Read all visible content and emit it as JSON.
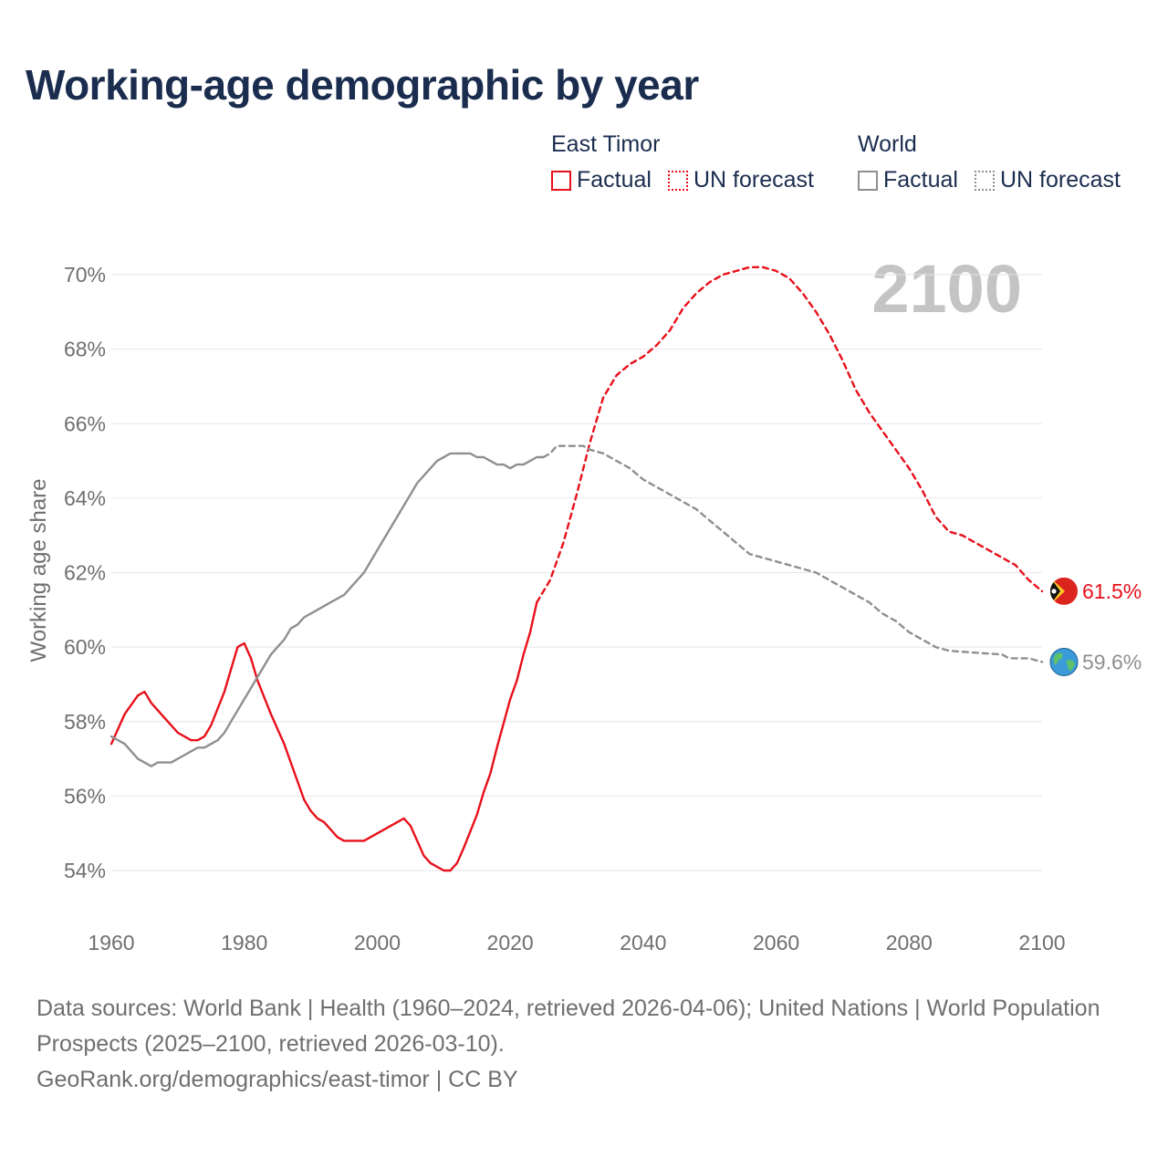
{
  "title": "Working-age demographic by year",
  "footer": {
    "sources": "Data sources: World Bank | Health (1960–2024, retrieved 2026-04-06); United Nations | World Population Prospects (2025–2100, retrieved 2026-03-10).",
    "attribution": "GeoRank.org/demographics/east-timor | CC BY"
  },
  "legend": {
    "east_timor": {
      "name": "East Timor",
      "factual": "Factual",
      "forecast": "UN forecast"
    },
    "world": {
      "name": "World",
      "factual": "Factual",
      "forecast": "UN forecast"
    }
  },
  "colors": {
    "east_timor": "#e8101a",
    "world": "#8f8f8f",
    "title": "#1b2d4f",
    "year_watermark": "#c4c4c4"
  },
  "chart_data": {
    "type": "line",
    "title": "Working-age demographic by year",
    "ylabel": "Working age share",
    "xlabel": "",
    "xlim": [
      1960,
      2100
    ],
    "ylim": [
      53,
      71
    ],
    "x_ticks": [
      1960,
      1980,
      2000,
      2020,
      2040,
      2060,
      2080,
      2100
    ],
    "x_tick_labels": [
      "1960",
      "1980",
      "2000",
      "2020",
      "2040",
      "2060",
      "2080",
      "2100"
    ],
    "y_ticks": [
      54,
      56,
      58,
      60,
      62,
      64,
      66,
      68,
      70
    ],
    "y_tick_labels": [
      "54%",
      "56%",
      "58%",
      "60%",
      "62%",
      "64%",
      "66%",
      "68%",
      "70%"
    ],
    "grid": true,
    "current_year_label": "2100",
    "series": [
      {
        "name": "East Timor",
        "kind": "factual",
        "icon": "east-timor-flag-icon",
        "points": [
          [
            1960,
            57.4
          ],
          [
            1962,
            58.2
          ],
          [
            1964,
            58.7
          ],
          [
            1965,
            58.8
          ],
          [
            1966,
            58.5
          ],
          [
            1968,
            58.1
          ],
          [
            1970,
            57.7
          ],
          [
            1972,
            57.5
          ],
          [
            1973,
            57.5
          ],
          [
            1974,
            57.6
          ],
          [
            1975,
            57.9
          ],
          [
            1977,
            58.8
          ],
          [
            1978,
            59.4
          ],
          [
            1979,
            60.0
          ],
          [
            1980,
            60.1
          ],
          [
            1981,
            59.7
          ],
          [
            1982,
            59.1
          ],
          [
            1984,
            58.2
          ],
          [
            1986,
            57.4
          ],
          [
            1988,
            56.4
          ],
          [
            1989,
            55.9
          ],
          [
            1990,
            55.6
          ],
          [
            1991,
            55.4
          ],
          [
            1992,
            55.3
          ],
          [
            1994,
            54.9
          ],
          [
            1995,
            54.8
          ],
          [
            1998,
            54.8
          ],
          [
            2004,
            55.4
          ],
          [
            2005,
            55.2
          ],
          [
            2007,
            54.4
          ],
          [
            2008,
            54.2
          ],
          [
            2010,
            54.0
          ],
          [
            2011,
            54.0
          ],
          [
            2012,
            54.2
          ],
          [
            2013,
            54.6
          ],
          [
            2015,
            55.5
          ],
          [
            2016,
            56.1
          ],
          [
            2017,
            56.6
          ],
          [
            2018,
            57.3
          ],
          [
            2020,
            58.6
          ],
          [
            2021,
            59.1
          ],
          [
            2022,
            59.8
          ],
          [
            2023,
            60.4
          ],
          [
            2024,
            61.2
          ]
        ]
      },
      {
        "name": "East Timor",
        "kind": "forecast",
        "points": [
          [
            2024,
            61.2
          ],
          [
            2026,
            61.8
          ],
          [
            2028,
            62.8
          ],
          [
            2030,
            64.1
          ],
          [
            2032,
            65.5
          ],
          [
            2034,
            66.7
          ],
          [
            2036,
            67.3
          ],
          [
            2038,
            67.6
          ],
          [
            2040,
            67.8
          ],
          [
            2042,
            68.1
          ],
          [
            2044,
            68.5
          ],
          [
            2046,
            69.1
          ],
          [
            2048,
            69.5
          ],
          [
            2050,
            69.8
          ],
          [
            2052,
            70.0
          ],
          [
            2054,
            70.1
          ],
          [
            2056,
            70.2
          ],
          [
            2058,
            70.2
          ],
          [
            2060,
            70.1
          ],
          [
            2062,
            69.9
          ],
          [
            2064,
            69.5
          ],
          [
            2066,
            69.0
          ],
          [
            2068,
            68.4
          ],
          [
            2070,
            67.7
          ],
          [
            2072,
            66.9
          ],
          [
            2074,
            66.3
          ],
          [
            2076,
            65.8
          ],
          [
            2078,
            65.3
          ],
          [
            2080,
            64.8
          ],
          [
            2082,
            64.2
          ],
          [
            2084,
            63.5
          ],
          [
            2086,
            63.1
          ],
          [
            2088,
            63.0
          ],
          [
            2090,
            62.8
          ],
          [
            2092,
            62.6
          ],
          [
            2094,
            62.4
          ],
          [
            2096,
            62.2
          ],
          [
            2098,
            61.8
          ],
          [
            2100,
            61.5
          ]
        ]
      },
      {
        "name": "World",
        "kind": "factual",
        "icon": "globe-icon",
        "points": [
          [
            1960,
            57.6
          ],
          [
            1962,
            57.4
          ],
          [
            1964,
            57.0
          ],
          [
            1966,
            56.8
          ],
          [
            1967,
            56.9
          ],
          [
            1969,
            56.9
          ],
          [
            1971,
            57.1
          ],
          [
            1973,
            57.3
          ],
          [
            1974,
            57.3
          ],
          [
            1976,
            57.5
          ],
          [
            1977,
            57.7
          ],
          [
            1978,
            58.0
          ],
          [
            1980,
            58.6
          ],
          [
            1982,
            59.2
          ],
          [
            1984,
            59.8
          ],
          [
            1985,
            60.0
          ],
          [
            1986,
            60.2
          ],
          [
            1987,
            60.5
          ],
          [
            1988,
            60.6
          ],
          [
            1989,
            60.8
          ],
          [
            1991,
            61.0
          ],
          [
            1993,
            61.2
          ],
          [
            1995,
            61.4
          ],
          [
            1996,
            61.6
          ],
          [
            1998,
            62.0
          ],
          [
            2000,
            62.6
          ],
          [
            2002,
            63.2
          ],
          [
            2004,
            63.8
          ],
          [
            2005,
            64.1
          ],
          [
            2006,
            64.4
          ],
          [
            2008,
            64.8
          ],
          [
            2009,
            65.0
          ],
          [
            2011,
            65.2
          ],
          [
            2014,
            65.2
          ],
          [
            2015,
            65.1
          ],
          [
            2016,
            65.1
          ],
          [
            2018,
            64.9
          ],
          [
            2019,
            64.9
          ],
          [
            2020,
            64.8
          ],
          [
            2021,
            64.9
          ],
          [
            2022,
            64.9
          ],
          [
            2024,
            65.1
          ],
          [
            2025,
            65.1
          ]
        ]
      },
      {
        "name": "World",
        "kind": "forecast",
        "points": [
          [
            2025,
            65.1
          ],
          [
            2026,
            65.2
          ],
          [
            2027,
            65.4
          ],
          [
            2031,
            65.4
          ],
          [
            2032,
            65.3
          ],
          [
            2034,
            65.2
          ],
          [
            2036,
            65.0
          ],
          [
            2038,
            64.8
          ],
          [
            2040,
            64.5
          ],
          [
            2042,
            64.3
          ],
          [
            2044,
            64.1
          ],
          [
            2046,
            63.9
          ],
          [
            2048,
            63.7
          ],
          [
            2050,
            63.4
          ],
          [
            2052,
            63.1
          ],
          [
            2054,
            62.8
          ],
          [
            2056,
            62.5
          ],
          [
            2058,
            62.4
          ],
          [
            2060,
            62.3
          ],
          [
            2062,
            62.2
          ],
          [
            2064,
            62.1
          ],
          [
            2066,
            62.0
          ],
          [
            2068,
            61.8
          ],
          [
            2070,
            61.6
          ],
          [
            2072,
            61.4
          ],
          [
            2074,
            61.2
          ],
          [
            2076,
            60.9
          ],
          [
            2078,
            60.7
          ],
          [
            2080,
            60.4
          ],
          [
            2082,
            60.2
          ],
          [
            2084,
            60.0
          ],
          [
            2086,
            59.9
          ],
          [
            2094,
            59.8
          ],
          [
            2095,
            59.7
          ],
          [
            2098,
            59.7
          ],
          [
            2100,
            59.6
          ]
        ]
      }
    ],
    "end_labels": [
      {
        "series": "East Timor",
        "value": 61.5,
        "label": "61.5%"
      },
      {
        "series": "World",
        "value": 59.6,
        "label": "59.6%"
      }
    ]
  }
}
